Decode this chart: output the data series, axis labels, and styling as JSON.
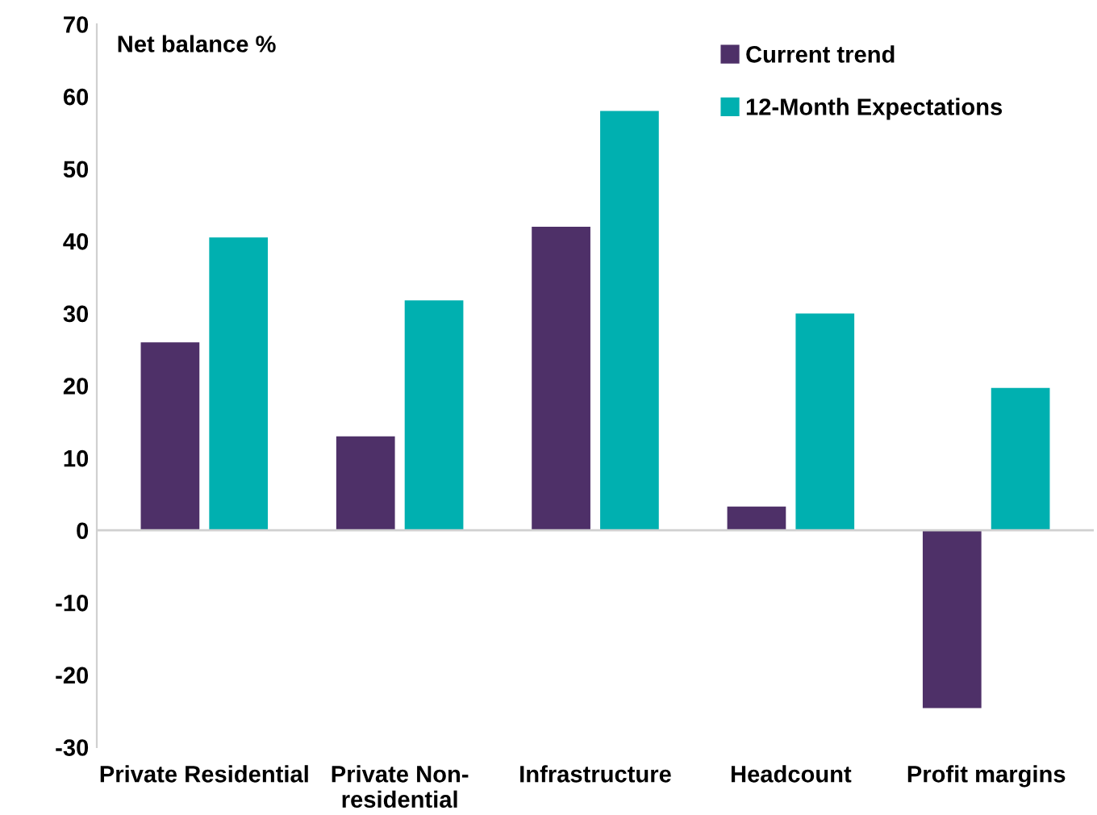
{
  "chart_data": {
    "type": "bar",
    "ylabel": "Net balance %",
    "categories": [
      "Private Residential",
      "Private Non-\nresidential",
      "Infrastructure",
      "Headcount",
      "Profit margins"
    ],
    "series": [
      {
        "name": "Current trend",
        "color": "#4e3068",
        "values": [
          26,
          13,
          42,
          3.3,
          -24.6
        ]
      },
      {
        "name": "12-Month Expectations",
        "color": "#00b0b0",
        "values": [
          40.5,
          31.8,
          58,
          30,
          19.7
        ]
      }
    ],
    "ylim": [
      -30,
      70
    ],
    "yticks": [
      -30,
      -20,
      -10,
      0,
      10,
      20,
      30,
      40,
      50,
      60,
      70
    ],
    "ref_lines": [
      {
        "axis": "y",
        "value": 0,
        "color": "#d0d0d0"
      }
    ],
    "legend": "top right"
  }
}
